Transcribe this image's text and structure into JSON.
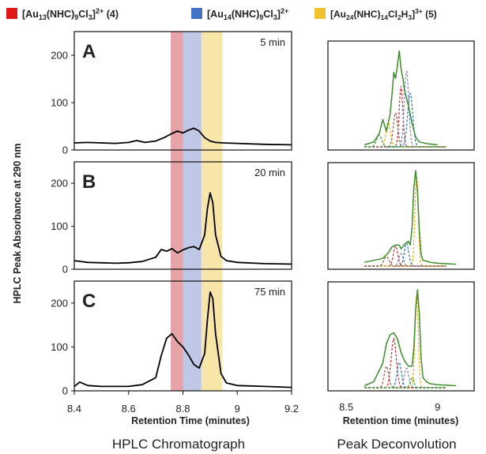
{
  "legend": [
    {
      "label": "[Au13(NHC)9Cl3]2+ (4)",
      "color": "#e01818"
    },
    {
      "label": "[Au14(NHC)9Cl3]2+",
      "color": "#4472c4"
    },
    {
      "label": "[Au24(NHC)14Cl2H3]3+ (5)",
      "color": "#f2c12e"
    }
  ],
  "shade_colors": [
    "#e6a3a8",
    "#bfc8e6",
    "#f8e5a8"
  ],
  "ylabel": "HPLC Peak Absorbance at 290 nm",
  "left_xlabel": "Retention Time (minutes)",
  "right_xlabel": "Retention time (minutes)",
  "left_caption": "HPLC Chromatograph",
  "right_caption": "Peak Deconvolution",
  "chart_data": [
    {
      "type": "line",
      "title": "HPLC Chromatograph",
      "xlabel": "Retention Time (minutes)",
      "ylabel": "HPLC Peak Absorbance at 290 nm",
      "xlim": [
        8.4,
        9.2
      ],
      "ylim": [
        0,
        250
      ],
      "xticks": [
        "8.4",
        "8.6",
        "8.8",
        "9",
        "9.2"
      ],
      "yticks": [
        "0",
        "100",
        "200"
      ],
      "shaded_bands": [
        {
          "species": "[Au13(NHC)9Cl3]2+ (4)",
          "x": [
            8.755,
            8.8
          ]
        },
        {
          "species": "[Au14(NHC)9Cl3]2+",
          "x": [
            8.8,
            8.868
          ]
        },
        {
          "species": "[Au24(NHC)14Cl2H3]3+ (5)",
          "x": [
            8.868,
            8.945
          ]
        }
      ],
      "panels": [
        {
          "letter": "A",
          "time": "5 min",
          "x": [
            8.4,
            8.45,
            8.5,
            8.55,
            8.6,
            8.63,
            8.66,
            8.7,
            8.73,
            8.76,
            8.78,
            8.8,
            8.82,
            8.84,
            8.86,
            8.88,
            8.9,
            8.92,
            8.95,
            9.0,
            9.1,
            9.2
          ],
          "y": [
            15,
            16,
            15,
            14,
            16,
            20,
            16,
            19,
            26,
            35,
            40,
            36,
            42,
            46,
            40,
            26,
            19,
            16,
            15,
            14,
            12,
            11
          ]
        },
        {
          "letter": "B",
          "time": "20 min",
          "x": [
            8.4,
            8.45,
            8.5,
            8.55,
            8.6,
            8.65,
            8.7,
            8.72,
            8.74,
            8.76,
            8.78,
            8.8,
            8.82,
            8.84,
            8.86,
            8.88,
            8.89,
            8.9,
            8.91,
            8.92,
            8.94,
            8.96,
            9.0,
            9.1,
            9.2
          ],
          "y": [
            20,
            16,
            15,
            14,
            15,
            18,
            28,
            46,
            42,
            48,
            38,
            45,
            50,
            53,
            46,
            80,
            140,
            178,
            155,
            80,
            30,
            20,
            16,
            13,
            12
          ]
        },
        {
          "letter": "C",
          "time": "75 min",
          "x": [
            8.4,
            8.42,
            8.45,
            8.5,
            8.55,
            8.6,
            8.65,
            8.7,
            8.72,
            8.74,
            8.76,
            8.78,
            8.8,
            8.82,
            8.84,
            8.86,
            8.88,
            8.89,
            8.9,
            8.91,
            8.92,
            8.94,
            8.96,
            9.0,
            9.1,
            9.2
          ],
          "y": [
            10,
            20,
            12,
            10,
            10,
            10,
            14,
            30,
            80,
            120,
            130,
            112,
            100,
            82,
            60,
            52,
            85,
            160,
            225,
            210,
            130,
            40,
            18,
            12,
            10,
            8
          ]
        }
      ]
    },
    {
      "type": "line",
      "title": "Peak Deconvolution",
      "xlabel": "Retention time (minutes)",
      "xlim": [
        8.4,
        9.2
      ],
      "xticks": [
        "8.5",
        "9"
      ],
      "panels": [
        {
          "panel": "A",
          "fit": {
            "x": [
              8.6,
              8.65,
              8.68,
              8.7,
              8.72,
              8.74,
              8.75,
              8.76,
              8.77,
              8.78,
              8.79,
              8.8,
              8.81,
              8.82,
              8.84,
              8.86,
              8.88,
              8.9,
              8.95,
              9.0
            ],
            "y": [
              0.02,
              0.05,
              0.13,
              0.28,
              0.16,
              0.33,
              0.52,
              0.76,
              0.7,
              0.83,
              0.98,
              0.8,
              0.7,
              0.57,
              0.42,
              0.24,
              0.1,
              0.05,
              0.03,
              0.02
            ]
          }
        },
        {
          "panel": "B",
          "fit": {
            "x": [
              8.6,
              8.65,
              8.7,
              8.73,
              8.75,
              8.77,
              8.79,
              8.8,
              8.82,
              8.84,
              8.85,
              8.86,
              8.87,
              8.88,
              8.89,
              8.9,
              8.91,
              8.92,
              8.94,
              8.96,
              9.0,
              9.1
            ],
            "y": [
              0.04,
              0.06,
              0.08,
              0.14,
              0.2,
              0.22,
              0.22,
              0.18,
              0.23,
              0.26,
              0.22,
              0.4,
              0.82,
              1.0,
              0.78,
              0.38,
              0.12,
              0.06,
              0.05,
              0.04,
              0.03,
              0.02
            ]
          }
        },
        {
          "panel": "C",
          "fit": {
            "x": [
              8.6,
              8.65,
              8.7,
              8.72,
              8.74,
              8.76,
              8.78,
              8.8,
              8.82,
              8.84,
              8.86,
              8.87,
              8.88,
              8.89,
              8.9,
              8.91,
              8.92,
              8.94,
              8.96,
              9.0,
              9.1
            ],
            "y": [
              0.02,
              0.06,
              0.25,
              0.45,
              0.54,
              0.56,
              0.5,
              0.36,
              0.27,
              0.22,
              0.22,
              0.4,
              0.8,
              1.0,
              0.75,
              0.3,
              0.1,
              0.06,
              0.04,
              0.03,
              0.02
            ]
          }
        }
      ]
    }
  ]
}
